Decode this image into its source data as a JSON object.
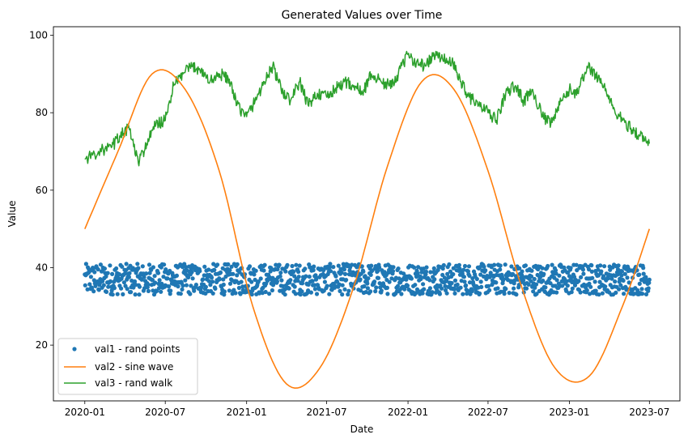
{
  "chart_data": {
    "type": "line",
    "title": "Generated Values over Time",
    "xlabel": "Date",
    "ylabel": "Value",
    "xlim": [
      "2019-10-22",
      "2023-09-08"
    ],
    "ylim": [
      5.6,
      102.2
    ],
    "x_ticks": [
      {
        "date": "2020-01-01",
        "label": "2020-01"
      },
      {
        "date": "2020-07-01",
        "label": "2020-07"
      },
      {
        "date": "2021-01-01",
        "label": "2021-01"
      },
      {
        "date": "2021-07-01",
        "label": "2021-07"
      },
      {
        "date": "2022-01-01",
        "label": "2022-01"
      },
      {
        "date": "2022-07-01",
        "label": "2022-07"
      },
      {
        "date": "2023-01-01",
        "label": "2023-01"
      },
      {
        "date": "2023-07-01",
        "label": "2023-07"
      }
    ],
    "y_ticks": [
      {
        "value": 20,
        "label": "20"
      },
      {
        "value": 40,
        "label": "40"
      },
      {
        "value": 60,
        "label": "60"
      },
      {
        "value": 80,
        "label": "80"
      },
      {
        "value": 100,
        "label": "100"
      }
    ],
    "legend_position": "lower-left",
    "series": [
      {
        "name": "val1 - rand points",
        "style": "markers",
        "color": "#1f77b4",
        "date_range": [
          "2020-01-01",
          "2023-07-01"
        ],
        "value_range": [
          33,
          41
        ],
        "count": 1278
      },
      {
        "name": "val2 - sine wave",
        "style": "line",
        "color": "#ff7f0e",
        "x": [
          "2020-01-01",
          "2020-03-16",
          "2020-06-01",
          "2020-08-15",
          "2020-10-31",
          "2021-01-15",
          "2021-04-01",
          "2021-06-15",
          "2021-08-31",
          "2021-11-15",
          "2022-02-01",
          "2022-04-15",
          "2022-07-01",
          "2022-09-15",
          "2022-11-30",
          "2023-02-15",
          "2023-05-01",
          "2023-07-01"
        ],
        "values": [
          50,
          70,
          90,
          86,
          65,
          30,
          10,
          14,
          35,
          66,
          88,
          86,
          65,
          35,
          14,
          12,
          30,
          50
        ],
        "peaks": [
          {
            "date": "2020-06-08",
            "value": 90
          },
          {
            "date": "2022-03-15",
            "value": 90
          }
        ],
        "troughs": [
          {
            "date": "2021-04-25",
            "value": 10
          },
          {
            "date": "2023-01-17",
            "value": 10
          }
        ]
      },
      {
        "name": "val3 - rand walk",
        "style": "line",
        "color": "#2ca02c",
        "x": [
          "2020-01-01",
          "2020-02-01",
          "2020-03-01",
          "2020-03-20",
          "2020-04-10",
          "2020-05-01",
          "2020-05-20",
          "2020-06-10",
          "2020-07-01",
          "2020-07-20",
          "2020-08-10",
          "2020-09-01",
          "2020-09-20",
          "2020-10-10",
          "2020-11-01",
          "2020-11-20",
          "2020-12-10",
          "2021-01-01",
          "2021-01-20",
          "2021-02-10",
          "2021-03-01",
          "2021-03-20",
          "2021-04-10",
          "2021-05-01",
          "2021-05-20",
          "2021-06-10",
          "2021-07-01",
          "2021-07-20",
          "2021-08-10",
          "2021-09-01",
          "2021-09-20",
          "2021-10-10",
          "2021-11-01",
          "2021-11-20",
          "2021-12-10",
          "2022-01-01",
          "2022-01-20",
          "2022-02-10",
          "2022-03-01",
          "2022-03-20",
          "2022-04-10",
          "2022-05-01",
          "2022-05-20",
          "2022-06-10",
          "2022-07-01",
          "2022-07-20",
          "2022-08-10",
          "2022-09-01",
          "2022-09-20",
          "2022-10-10",
          "2022-11-01",
          "2022-11-20",
          "2022-12-10",
          "2023-01-01",
          "2023-01-20",
          "2023-02-10",
          "2023-03-01",
          "2023-03-20",
          "2023-04-10",
          "2023-05-01",
          "2023-05-20",
          "2023-06-10",
          "2023-07-01"
        ],
        "values": [
          68,
          70,
          71,
          74,
          76,
          67,
          72,
          77,
          78,
          87,
          90,
          92,
          91,
          88,
          90,
          89,
          82,
          79,
          83,
          88,
          92,
          86,
          83,
          88,
          82,
          85,
          84,
          86,
          88,
          87,
          85,
          90,
          88,
          87,
          90,
          95,
          93,
          92,
          95,
          94,
          93,
          88,
          84,
          82,
          80,
          78,
          85,
          87,
          83,
          86,
          79,
          77,
          82,
          86,
          85,
          92,
          90,
          87,
          81,
          78,
          76,
          74,
          72
        ]
      }
    ]
  }
}
